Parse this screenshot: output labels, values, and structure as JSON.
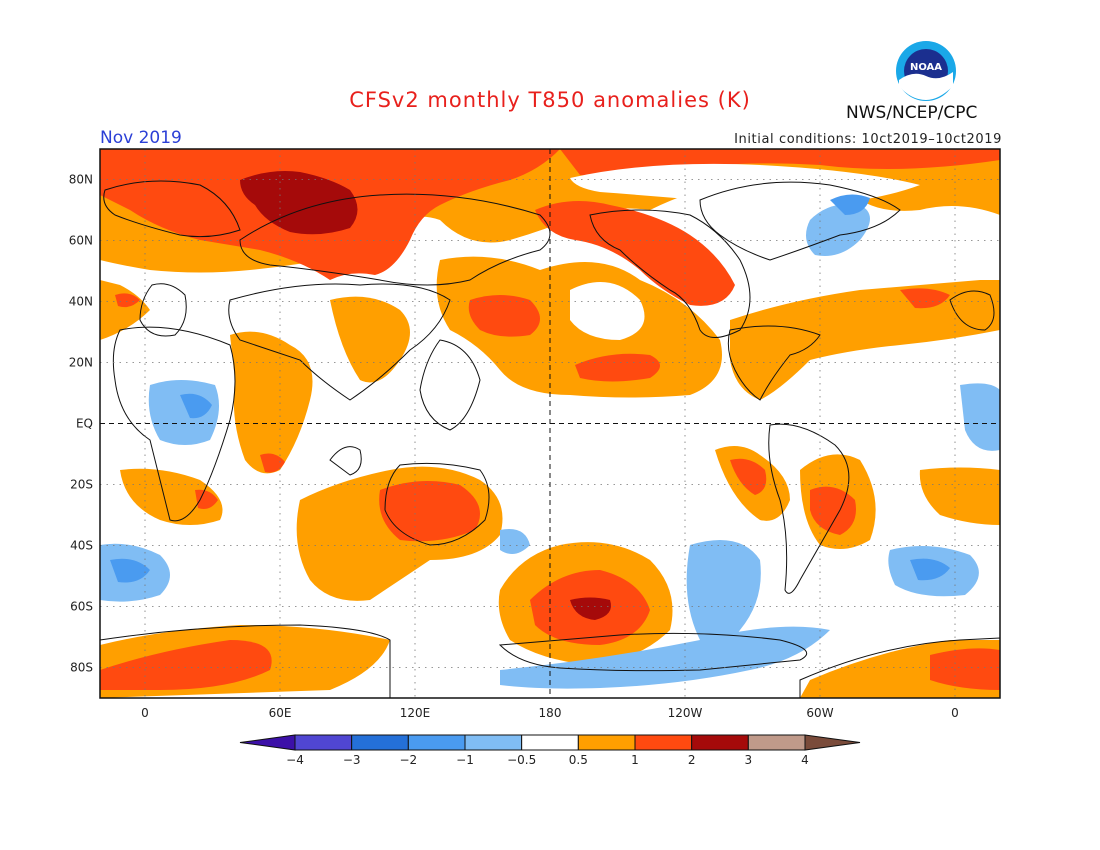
{
  "header": {
    "title": "CFSv2 monthly T850 anomalies (K)",
    "month": "Nov 2019",
    "initial_conditions": "Initial conditions: 10ct2019–10ct2019",
    "agency": "NWS/NCEP/CPC",
    "logo_icon": "noaa-logo-icon",
    "logo_text": "NOAA"
  },
  "map": {
    "projection": "equirectangular",
    "lon_range": [
      -20,
      380
    ],
    "lat_range": [
      -90,
      90
    ],
    "lat_labels": [
      "80N",
      "60N",
      "40N",
      "20N",
      "EQ",
      "20S",
      "40S",
      "60S",
      "80S"
    ],
    "lon_labels": [
      "0",
      "60E",
      "120E",
      "180",
      "120W",
      "60W",
      "0"
    ],
    "reference_lines": [
      "EQ",
      "180"
    ]
  },
  "colorbar": {
    "labels": [
      "−4",
      "−3",
      "−2",
      "−1",
      "−0.5",
      "0.5",
      "1",
      "2",
      "3",
      "4"
    ],
    "colors": [
      "#3c10a8",
      "#5046d2",
      "#2470d8",
      "#4a9bf0",
      "#80bdf4",
      "#ffffff",
      "#ff9f00",
      "#ff4a10",
      "#a50a0a",
      "#c09a8a",
      "#7a4b3a"
    ]
  }
}
